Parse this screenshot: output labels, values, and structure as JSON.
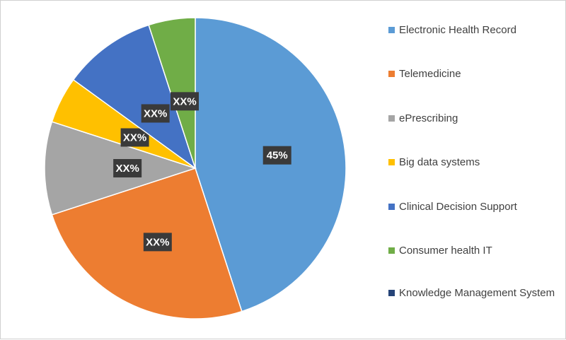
{
  "chart_data": {
    "type": "pie",
    "title": "",
    "slices": [
      {
        "name": "Electronic Health Record",
        "value": 45,
        "label": "45%",
        "color": "#5b9bd5"
      },
      {
        "name": "Telemedicine",
        "value": 25,
        "label": "XX%",
        "color": "#ed7d31"
      },
      {
        "name": "ePrescribing",
        "value": 10,
        "label": "XX%",
        "color": "#a5a5a5"
      },
      {
        "name": "Big data systems",
        "value": 5,
        "label": "XX%",
        "color": "#ffc000"
      },
      {
        "name": "Clinical Decision Support",
        "value": 10,
        "label": "XX%",
        "color": "#4472c4"
      },
      {
        "name": "Consumer health IT",
        "value": 5,
        "label": "XX%",
        "color": "#70ad47"
      },
      {
        "name": "Knowledge Management System",
        "value": 0,
        "label": "",
        "color": "#264478"
      }
    ],
    "legend_position": "right"
  }
}
